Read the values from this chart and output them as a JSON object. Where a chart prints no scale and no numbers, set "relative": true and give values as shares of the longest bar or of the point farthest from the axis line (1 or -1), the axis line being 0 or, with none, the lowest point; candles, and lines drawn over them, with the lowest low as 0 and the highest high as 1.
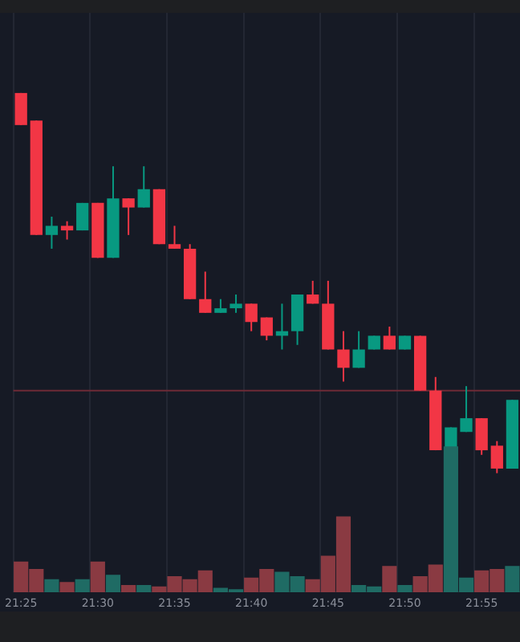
{
  "chart_data": [
    {
      "type": "candlestick",
      "relative": true,
      "grid": "x",
      "legend": false,
      "categories": [
        "21:25",
        null,
        null,
        null,
        null,
        "21:30",
        null,
        null,
        null,
        null,
        "21:35",
        null,
        null,
        null,
        null,
        "21:40",
        null,
        null,
        null,
        null,
        "21:45",
        null,
        null,
        null,
        null,
        "21:50",
        null,
        null,
        null,
        null,
        "21:55",
        null,
        null
      ],
      "ohlc": [
        [
          1,
          1,
          0.93,
          0.93
        ],
        [
          0.94,
          0.94,
          0.69,
          0.69
        ],
        [
          0.69,
          0.73,
          0.66,
          0.71
        ],
        [
          0.71,
          0.72,
          0.68,
          0.7
        ],
        [
          0.7,
          0.76,
          0.7,
          0.76
        ],
        [
          0.76,
          0.76,
          0.64,
          0.64
        ],
        [
          0.64,
          0.84,
          0.64,
          0.77
        ],
        [
          0.77,
          0.77,
          0.69,
          0.75
        ],
        [
          0.75,
          0.84,
          0.75,
          0.79
        ],
        [
          0.79,
          0.79,
          0.67,
          0.67
        ],
        [
          0.67,
          0.71,
          0.66,
          0.66
        ],
        [
          0.66,
          0.67,
          0.55,
          0.55
        ],
        [
          0.55,
          0.61,
          0.52,
          0.52
        ],
        [
          0.52,
          0.55,
          0.52,
          0.53
        ],
        [
          0.53,
          0.56,
          0.52,
          0.54
        ],
        [
          0.54,
          0.54,
          0.48,
          0.5
        ],
        [
          0.51,
          0.51,
          0.46,
          0.47
        ],
        [
          0.47,
          0.54,
          0.44,
          0.48
        ],
        [
          0.48,
          0.56,
          0.45,
          0.56
        ],
        [
          0.56,
          0.59,
          0.54,
          0.54
        ],
        [
          0.54,
          0.59,
          0.44,
          0.44
        ],
        [
          0.44,
          0.48,
          0.37,
          0.4
        ],
        [
          0.4,
          0.48,
          0.4,
          0.44
        ],
        [
          0.44,
          0.47,
          0.44,
          0.47
        ],
        [
          0.47,
          0.49,
          0.44,
          0.44
        ],
        [
          0.44,
          0.47,
          0.44,
          0.47
        ],
        [
          0.47,
          0.47,
          0.35,
          0.35
        ],
        [
          0.35,
          0.38,
          0.22,
          0.22
        ],
        [
          0.22,
          0.27,
          0,
          0.27
        ],
        [
          0.26,
          0.36,
          0.26,
          0.29
        ],
        [
          0.29,
          0.29,
          0.21,
          0.22
        ],
        [
          0.23,
          0.24,
          0.17,
          0.18
        ],
        [
          0.18,
          0.33,
          0.18,
          0.33
        ]
      ],
      "colors": [
        "#f23645",
        "#f23645",
        "#089981",
        "#f23645",
        "#089981",
        "#f23645",
        "#089981",
        "#f23645",
        "#089981",
        "#f23645",
        "#f23645",
        "#f23645",
        "#f23645",
        "#089981",
        "#089981",
        "#f23645",
        "#f23645",
        "#089981",
        "#089981",
        "#f23645",
        "#f23645",
        "#f23645",
        "#089981",
        "#089981",
        "#f23645",
        "#089981",
        "#f23645",
        "#f23645",
        "#089981",
        "#089981",
        "#f23645",
        "#f23645",
        "#089981"
      ],
      "ref_lines": [
        {
          "axis": "y",
          "value": 0.35,
          "color": "#6e2a36"
        }
      ]
    },
    {
      "type": "bar",
      "relative": true,
      "legend": false,
      "tick_labels": false,
      "categories": [
        null,
        null,
        null,
        null,
        null,
        null,
        null,
        null,
        null,
        null,
        null,
        null,
        null,
        null,
        null,
        null,
        null,
        null,
        null,
        null,
        null,
        null,
        null,
        null,
        null,
        null,
        null,
        null,
        null,
        null,
        null,
        null,
        null
      ],
      "values": [
        0.21,
        0.16,
        0.09,
        0.07,
        0.09,
        0.21,
        0.12,
        0.05,
        0.05,
        0.04,
        0.11,
        0.09,
        0.15,
        0.03,
        0.02,
        0.1,
        0.16,
        0.14,
        0.11,
        0.09,
        0.25,
        0.52,
        0.05,
        0.04,
        0.18,
        0.05,
        0.11,
        0.19,
        1,
        0.1,
        0.15,
        0.16,
        0.18
      ],
      "colors": [
        "#8a3a42",
        "#8a3a42",
        "#1f6b64",
        "#8a3a42",
        "#1f6b64",
        "#8a3a42",
        "#1f6b64",
        "#8a3a42",
        "#1f6b64",
        "#8a3a42",
        "#8a3a42",
        "#8a3a42",
        "#8a3a42",
        "#1f6b64",
        "#1f6b64",
        "#8a3a42",
        "#8a3a42",
        "#1f6b64",
        "#1f6b64",
        "#8a3a42",
        "#8a3a42",
        "#8a3a42",
        "#1f6b64",
        "#1f6b64",
        "#8a3a42",
        "#1f6b64",
        "#8a3a42",
        "#8a3a42",
        "#1f6b64",
        "#1f6b64",
        "#8a3a42",
        "#8a3a42",
        "#1f6b64"
      ]
    }
  ]
}
